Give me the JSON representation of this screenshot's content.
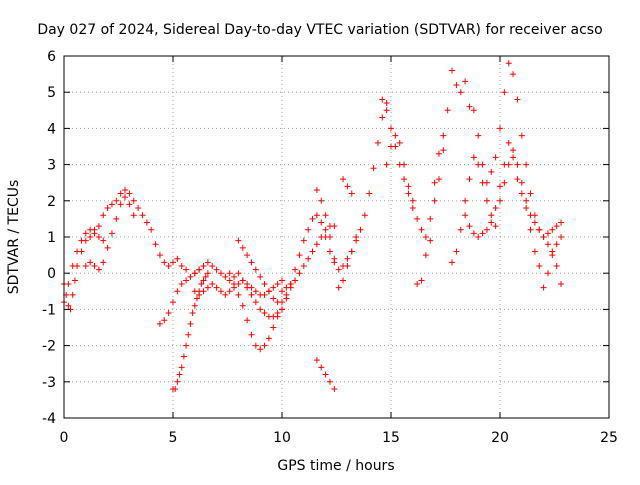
{
  "chart_data": {
    "type": "scatter",
    "title": "Day 027 of 2024, Sidereal Day-to-day VTEC variation (SDTVAR) for receiver acso",
    "xlabel": "GPS time / hours",
    "ylabel": "SDTVAR / TECUs",
    "xlim": [
      0,
      25
    ],
    "ylim": [
      -4,
      6
    ],
    "xticks": [
      0,
      5,
      10,
      15,
      20,
      25
    ],
    "yticks": [
      -4,
      -3,
      -2,
      -1,
      0,
      1,
      2,
      3,
      4,
      5,
      6
    ],
    "grid": true,
    "marker": "+",
    "color": "#ff0000",
    "series": [
      {
        "name": "t1",
        "x": [
          0.0,
          0.2,
          0.4,
          0.6,
          0.8,
          1.0,
          1.2,
          1.4,
          1.6,
          1.8,
          2.0,
          2.2,
          2.4,
          2.6,
          2.8,
          3.0,
          3.2,
          3.4,
          3.6,
          3.8,
          4.0,
          4.2,
          4.4,
          4.6,
          4.8,
          5.0,
          5.2,
          5.4,
          5.6
        ],
        "y": [
          -0.8,
          -0.3,
          0.2,
          0.6,
          0.9,
          1.1,
          1.2,
          1.2,
          1.3,
          1.6,
          1.8,
          1.9,
          2.0,
          2.2,
          2.3,
          2.2,
          2.0,
          1.8,
          1.6,
          1.4,
          1.2,
          0.8,
          0.5,
          0.3,
          0.2,
          0.3,
          0.4,
          0.2,
          0.1
        ]
      },
      {
        "name": "t2",
        "x": [
          0.0,
          0.1,
          0.2,
          0.3,
          0.4,
          0.5,
          0.6,
          0.8,
          1.0,
          1.2,
          1.4,
          1.6,
          1.8
        ],
        "y": [
          -0.3,
          -0.6,
          -0.9,
          -1.0,
          -0.6,
          -0.2,
          0.2,
          0.6,
          0.9,
          1.0,
          1.1,
          1.0,
          0.9
        ]
      },
      {
        "name": "t3",
        "x": [
          1.0,
          1.2,
          1.4,
          1.6,
          1.8,
          2.0,
          2.2,
          2.4,
          2.6,
          2.8,
          3.0,
          3.2
        ],
        "y": [
          0.2,
          0.3,
          0.2,
          0.1,
          0.3,
          0.7,
          1.1,
          1.5,
          1.9,
          2.1,
          1.9,
          1.6
        ]
      },
      {
        "name": "t4",
        "x": [
          4.4,
          4.6,
          4.8,
          5.0,
          5.2,
          5.4,
          5.6,
          5.8,
          6.0,
          6.2,
          6.4
        ],
        "y": [
          -1.4,
          -1.3,
          -1.1,
          -0.8,
          -0.5,
          -0.3,
          -0.2,
          -0.1,
          0.0,
          0.1,
          0.2
        ]
      },
      {
        "name": "t5",
        "x": [
          5.0,
          5.1,
          5.2,
          5.3,
          5.4,
          5.5,
          5.6,
          5.7,
          5.8,
          5.9,
          6.0,
          6.1,
          6.2,
          6.3,
          6.4,
          6.5,
          6.6
        ],
        "y": [
          -3.2,
          -3.2,
          -3.0,
          -2.8,
          -2.6,
          -2.3,
          -2.0,
          -1.7,
          -1.4,
          -1.1,
          -0.9,
          -0.7,
          -0.5,
          -0.3,
          -0.2,
          -0.1,
          0.0
        ]
      },
      {
        "name": "t6",
        "x": [
          6.0,
          6.2,
          6.4,
          6.6,
          6.8,
          7.0,
          7.2,
          7.4,
          7.6,
          7.8,
          8.0,
          8.2,
          8.4,
          8.6,
          8.8,
          9.0,
          9.2,
          9.4,
          9.6,
          9.8,
          10.0
        ],
        "y": [
          0.0,
          0.1,
          0.2,
          0.3,
          0.2,
          0.1,
          0.0,
          -0.1,
          -0.2,
          -0.1,
          0.0,
          -0.2,
          -0.4,
          -0.6,
          -0.8,
          -1.0,
          -1.1,
          -1.2,
          -1.2,
          -1.1,
          -1.0
        ]
      },
      {
        "name": "t7",
        "x": [
          6.0,
          6.2,
          6.4,
          6.6,
          6.8,
          7.0,
          7.2,
          7.4,
          7.6,
          7.8,
          8.0,
          8.2,
          8.4,
          8.6,
          8.8,
          9.0,
          9.2,
          9.4,
          9.6,
          9.8,
          10.0
        ],
        "y": [
          -0.5,
          -0.6,
          -0.5,
          -0.4,
          -0.3,
          -0.4,
          -0.5,
          -0.6,
          -0.5,
          -0.4,
          -0.3,
          -0.2,
          -0.3,
          -0.4,
          -0.5,
          -0.6,
          -0.6,
          -0.5,
          -0.4,
          -0.3,
          -0.2
        ]
      },
      {
        "name": "t8",
        "x": [
          7.6,
          7.8,
          8.0,
          8.2,
          8.4,
          8.6,
          8.8,
          9.0,
          9.2,
          9.4,
          9.6,
          9.8,
          10.0
        ],
        "y": [
          0.0,
          -0.3,
          -0.6,
          -0.9,
          -1.3,
          -1.7,
          -2.0,
          -2.1,
          -2.0,
          -1.8,
          -1.5,
          -1.2,
          -1.0
        ]
      },
      {
        "name": "t9",
        "x": [
          8.0,
          8.2,
          8.4,
          8.6,
          8.8,
          9.0,
          9.2,
          9.4,
          9.6,
          9.8,
          10.0,
          10.2,
          10.4,
          10.6
        ],
        "y": [
          0.9,
          0.7,
          0.5,
          0.3,
          0.1,
          -0.1,
          -0.3,
          -0.5,
          -0.7,
          -0.8,
          -0.8,
          -0.6,
          -0.4,
          -0.2
        ]
      },
      {
        "name": "t10",
        "x": [
          10.0,
          10.2,
          10.4,
          10.6,
          10.8,
          11.0,
          11.2,
          11.4,
          11.6,
          11.8,
          12.0,
          12.2,
          12.4,
          12.6,
          12.8,
          13.0,
          13.2,
          13.4,
          13.6,
          13.8,
          14.0,
          14.2,
          14.4,
          14.6,
          14.8
        ],
        "y": [
          -1.0,
          -0.7,
          -0.3,
          0.1,
          0.5,
          0.9,
          1.2,
          1.5,
          1.6,
          1.4,
          1.0,
          0.6,
          0.3,
          0.1,
          0.2,
          0.4,
          0.6,
          0.9,
          1.2,
          1.6,
          2.2,
          2.9,
          3.6,
          4.3,
          4.7
        ]
      },
      {
        "name": "t11",
        "x": [
          10.0,
          10.2,
          10.4,
          10.6,
          10.8,
          11.0,
          11.2,
          11.4,
          11.6,
          11.8,
          12.0,
          12.2,
          12.4
        ],
        "y": [
          -0.5,
          -0.4,
          -0.3,
          -0.2,
          0.0,
          0.2,
          0.4,
          0.6,
          0.8,
          1.0,
          1.2,
          1.3,
          1.3
        ]
      },
      {
        "name": "t12",
        "x": [
          11.6,
          11.8,
          12.0,
          12.2,
          12.4
        ],
        "y": [
          2.3,
          2.0,
          1.6,
          1.0,
          0.4
        ]
      },
      {
        "name": "t13",
        "x": [
          11.6,
          11.8,
          12.0,
          12.2,
          12.4
        ],
        "y": [
          -2.4,
          -2.6,
          -2.8,
          -3.0,
          -3.2
        ]
      },
      {
        "name": "t14",
        "x": [
          12.6,
          12.8,
          13.0,
          13.2,
          13.4
        ],
        "y": [
          -0.4,
          -0.2,
          0.2,
          0.6,
          1.0
        ]
      },
      {
        "name": "t15",
        "x": [
          12.8,
          13.0,
          13.2
        ],
        "y": [
          2.6,
          2.4,
          2.2
        ]
      },
      {
        "name": "t16",
        "x": [
          14.6,
          14.8,
          15.0,
          15.2,
          15.4,
          15.6,
          15.8,
          16.0,
          16.2,
          16.4,
          16.6,
          16.8
        ],
        "y": [
          4.8,
          4.5,
          4.0,
          3.5,
          3.0,
          2.6,
          2.2,
          1.8,
          1.5,
          1.2,
          1.0,
          0.9
        ]
      },
      {
        "name": "t17",
        "x": [
          14.8,
          15.0,
          15.2,
          15.4,
          15.6,
          15.8,
          16.0
        ],
        "y": [
          3.0,
          3.5,
          3.8,
          3.6,
          3.0,
          2.4,
          2.0
        ]
      },
      {
        "name": "t18",
        "x": [
          16.2,
          16.4,
          16.6,
          16.8,
          17.0,
          17.2,
          17.4
        ],
        "y": [
          -0.3,
          -0.2,
          0.5,
          1.5,
          2.5,
          3.3,
          3.8
        ]
      },
      {
        "name": "t19",
        "x": [
          17.0,
          17.2,
          17.4,
          17.6,
          17.8,
          18.0,
          18.2,
          18.4,
          18.6,
          18.8,
          19.0,
          19.2,
          19.4,
          19.6,
          19.8,
          20.0,
          20.2,
          20.4,
          20.6,
          20.8,
          21.0,
          21.2,
          21.4,
          21.6,
          21.8,
          22.0,
          22.2,
          22.4,
          22.6,
          22.8
        ],
        "y": [
          2.0,
          2.6,
          3.4,
          4.5,
          5.6,
          5.2,
          5.0,
          5.3,
          4.6,
          4.5,
          3.8,
          3.0,
          2.5,
          2.8,
          3.2,
          4.0,
          5.0,
          5.8,
          5.5,
          4.8,
          3.8,
          3.0,
          2.2,
          1.6,
          1.2,
          1.0,
          1.1,
          1.2,
          1.3,
          1.4
        ]
      },
      {
        "name": "t20",
        "x": [
          17.8,
          18.0,
          18.2,
          18.4,
          18.6,
          18.8,
          19.0,
          19.2,
          19.4,
          19.6,
          19.8
        ],
        "y": [
          0.3,
          0.6,
          1.2,
          2.0,
          2.6,
          3.2,
          3.0,
          2.5,
          2.0,
          1.6,
          1.3
        ]
      },
      {
        "name": "t21",
        "x": [
          18.4,
          18.6,
          18.8,
          19.0,
          19.2,
          19.4,
          19.6,
          19.8,
          20.0,
          20.2,
          20.4,
          20.6,
          20.8,
          21.0,
          21.2,
          21.4,
          21.6,
          21.8,
          22.0,
          22.2,
          22.4,
          22.6,
          22.8
        ],
        "y": [
          1.6,
          1.3,
          1.1,
          1.0,
          1.1,
          1.2,
          1.4,
          1.8,
          2.4,
          3.0,
          3.6,
          3.2,
          2.6,
          2.2,
          1.8,
          1.2,
          0.6,
          0.2,
          -0.4,
          0.0,
          0.5,
          0.8,
          1.0
        ]
      },
      {
        "name": "t22",
        "x": [
          20.0,
          20.2,
          20.4,
          20.6,
          20.8,
          21.0,
          21.2,
          21.4,
          21.6,
          21.8,
          22.0,
          22.2,
          22.4,
          22.6,
          22.8
        ],
        "y": [
          2.0,
          2.5,
          3.0,
          3.4,
          3.0,
          2.5,
          2.0,
          1.6,
          1.4,
          1.2,
          1.0,
          0.8,
          0.6,
          0.2,
          -0.3
        ]
      }
    ]
  }
}
